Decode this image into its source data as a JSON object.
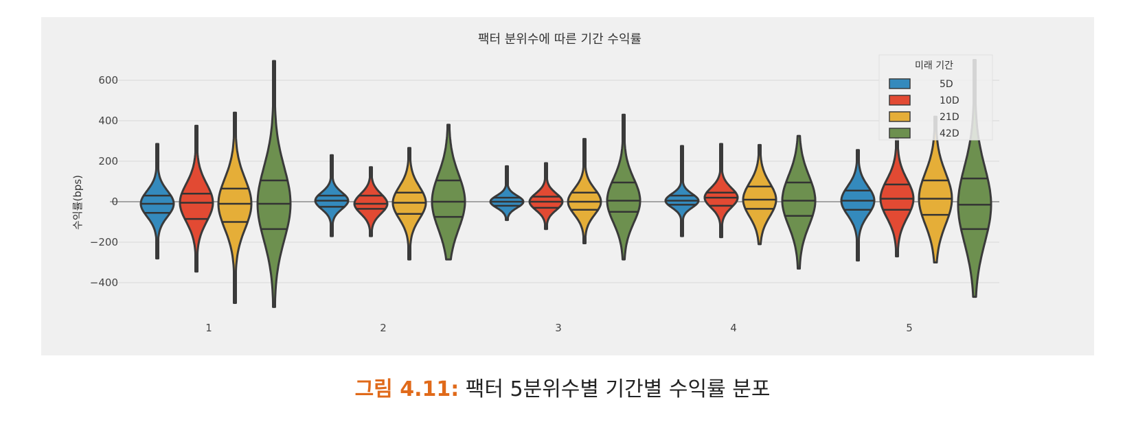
{
  "chart_data": {
    "type": "violin",
    "title": "팩터 분위수에 따른 기간 수익률",
    "xlabel": "",
    "ylabel": "수익률(bps)",
    "categories": [
      "1",
      "2",
      "3",
      "4",
      "5"
    ],
    "y_ticks": [
      "600",
      "400",
      "200",
      "0",
      "−200",
      "−400"
    ],
    "ylim": [
      -560,
      750
    ],
    "grid": true,
    "legend": {
      "title": "미래 기간",
      "placement": "top-right"
    },
    "series": [
      {
        "name": "5D",
        "color": "#348ABD",
        "stats": [
          {
            "min": -280,
            "q1": -55,
            "median": -10,
            "q3": 30,
            "max": 285
          },
          {
            "min": -170,
            "q1": -25,
            "median": 5,
            "q3": 30,
            "max": 230
          },
          {
            "min": -90,
            "q1": -20,
            "median": 0,
            "q3": 20,
            "max": 175
          },
          {
            "min": -170,
            "q1": -15,
            "median": 5,
            "q3": 30,
            "max": 275
          },
          {
            "min": -290,
            "q1": -40,
            "median": 5,
            "q3": 55,
            "max": 255
          }
        ]
      },
      {
        "name": "10D",
        "color": "#E24A33",
        "stats": [
          {
            "min": -345,
            "q1": -85,
            "median": -5,
            "q3": 40,
            "max": 375
          },
          {
            "min": -170,
            "q1": -35,
            "median": -10,
            "q3": 30,
            "max": 170
          },
          {
            "min": -135,
            "q1": -30,
            "median": 0,
            "q3": 25,
            "max": 190
          },
          {
            "min": -175,
            "q1": -20,
            "median": 20,
            "q3": 45,
            "max": 285
          },
          {
            "min": -270,
            "q1": -40,
            "median": 15,
            "q3": 85,
            "max": 345
          }
        ]
      },
      {
        "name": "21D",
        "color": "#E5AE38",
        "stats": [
          {
            "min": -500,
            "q1": -100,
            "median": -10,
            "q3": 65,
            "max": 440
          },
          {
            "min": -285,
            "q1": -60,
            "median": -5,
            "q3": 45,
            "max": 265
          },
          {
            "min": -205,
            "q1": -40,
            "median": 0,
            "q3": 45,
            "max": 310
          },
          {
            "min": -210,
            "q1": -35,
            "median": 10,
            "q3": 75,
            "max": 280
          },
          {
            "min": -300,
            "q1": -65,
            "median": 15,
            "q3": 105,
            "max": 420
          }
        ]
      },
      {
        "name": "42D",
        "color": "#6D904F",
        "stats": [
          {
            "min": -520,
            "q1": -135,
            "median": -10,
            "q3": 105,
            "max": 695
          },
          {
            "min": -285,
            "q1": -75,
            "median": 0,
            "q3": 105,
            "max": 380
          },
          {
            "min": -285,
            "q1": -50,
            "median": 5,
            "q3": 95,
            "max": 430
          },
          {
            "min": -330,
            "q1": -70,
            "median": 5,
            "q3": 95,
            "max": 325
          },
          {
            "min": -470,
            "q1": -135,
            "median": -15,
            "q3": 115,
            "max": 700
          }
        ]
      }
    ]
  },
  "caption": {
    "label": "그림 4.11:",
    "text": " 팩터 5분위수별 기간별 수익률 분포"
  }
}
